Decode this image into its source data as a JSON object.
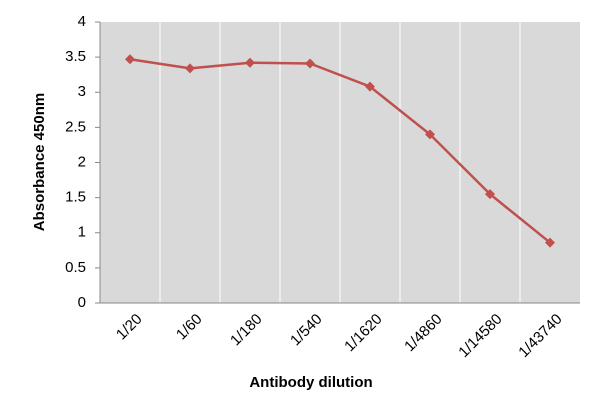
{
  "chart_data": {
    "type": "line",
    "x_label": "Antibody dilution",
    "y_label": "Absorbance 450nm",
    "categories": [
      "1/20",
      "1/60",
      "1/180",
      "1/540",
      "1/1620",
      "1/4860",
      "1/14580",
      "1/43740"
    ],
    "series": [
      {
        "color": "#c0504d",
        "values": [
          3.47,
          3.34,
          3.42,
          3.41,
          3.08,
          2.4,
          1.55,
          0.86
        ]
      }
    ],
    "ylim": [
      0,
      4
    ],
    "yticks": [
      0,
      0.5,
      1,
      1.5,
      2,
      2.5,
      3,
      3.5,
      4
    ]
  }
}
